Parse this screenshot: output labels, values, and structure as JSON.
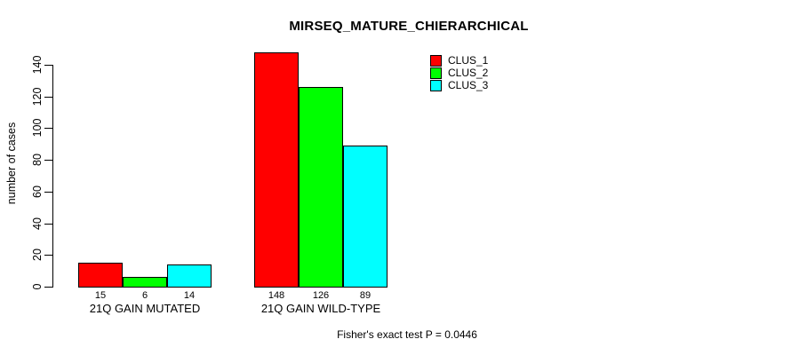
{
  "figure": {
    "background": "#ffffff",
    "axis_color": "#000000",
    "text_color": "#000000"
  },
  "chart_data": {
    "type": "bar",
    "title": "MIRSEQ_MATURE_CHIERARCHICAL",
    "xlabel": "",
    "ylabel": "number of cases",
    "categories": [
      "21Q GAIN MUTATED",
      "21Q GAIN WILD-TYPE"
    ],
    "series": [
      {
        "name": "CLUS_1",
        "color": "#FF0000",
        "values": [
          15,
          148
        ]
      },
      {
        "name": "CLUS_2",
        "color": "#00FF00",
        "values": [
          6,
          126
        ]
      },
      {
        "name": "CLUS_3",
        "color": "#00FFFF",
        "values": [
          14,
          89
        ]
      }
    ],
    "bar_value_labels": [
      [
        "15",
        "6",
        "14"
      ],
      [
        "148",
        "126",
        "89"
      ]
    ],
    "ylim": [
      0,
      140
    ],
    "yticks": [
      0,
      20,
      40,
      60,
      80,
      100,
      120,
      140
    ],
    "grid": false,
    "legend_position": "top-right-inside",
    "annotations": [
      "Fisher's exact test P = 0.0446"
    ]
  },
  "legend": {
    "entries": [
      {
        "label": "CLUS_1",
        "color": "#FF0000"
      },
      {
        "label": "CLUS_2",
        "color": "#00FF00"
      },
      {
        "label": "CLUS_3",
        "color": "#00FFFF"
      }
    ]
  }
}
